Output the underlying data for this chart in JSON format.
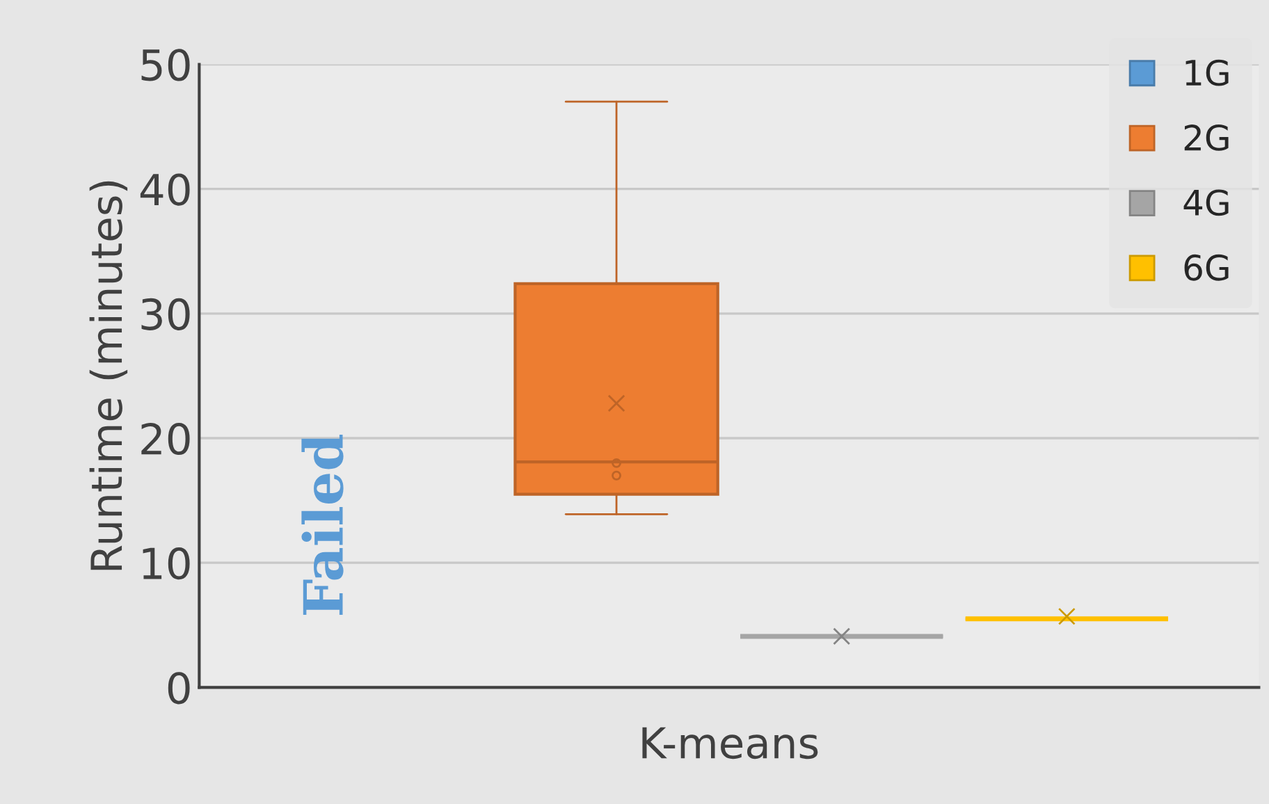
{
  "chart_data": {
    "type": "box",
    "ylabel": "Runtime (minutes)",
    "categories": [
      "K-means"
    ],
    "series": [
      {
        "name": "1G",
        "color": "#5b9bd5",
        "boxes": [
          null
        ]
      },
      {
        "name": "2G",
        "color": "#ed7d31",
        "boxes": [
          {
            "low": 13.9,
            "q1": 15.5,
            "median": 18.1,
            "q3": 32.4,
            "high": 47.0,
            "mean": 22.8,
            "outliers": [
              18.0,
              17.0
            ]
          }
        ]
      },
      {
        "name": "4G",
        "color": "#a5a5a5",
        "boxes": [
          {
            "low": 4.1,
            "q1": 4.1,
            "median": 4.1,
            "q3": 4.1,
            "high": 4.1,
            "mean": 4.1
          }
        ]
      },
      {
        "name": "6G",
        "color": "#ffc000",
        "boxes": [
          {
            "low": 5.5,
            "q1": 5.5,
            "median": 5.5,
            "q3": 5.5,
            "high": 5.5,
            "mean": 5.7
          }
        ]
      }
    ],
    "annotations": [
      "Failed"
    ],
    "ylim": [
      0,
      50
    ],
    "yticks": [
      0,
      10,
      20,
      30,
      40,
      50
    ],
    "grid": "y",
    "legend": "top right"
  }
}
